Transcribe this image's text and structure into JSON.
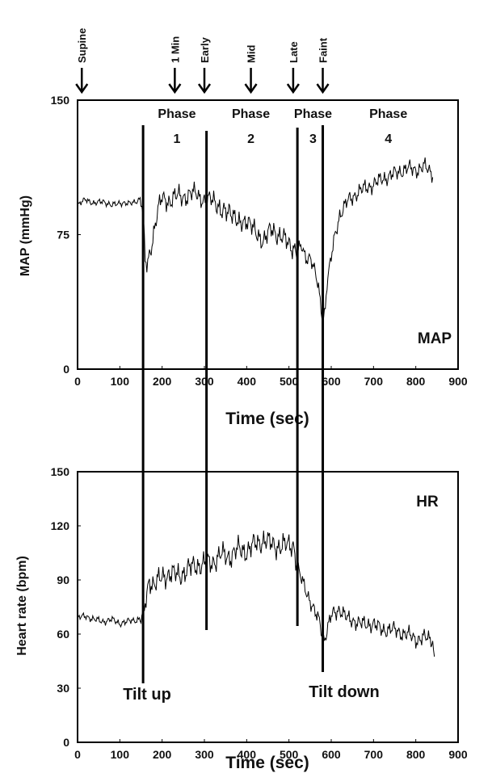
{
  "events": [
    {
      "label": "Supine",
      "t": 10
    },
    {
      "label": "1 Min",
      "t": 230
    },
    {
      "label": "Early",
      "t": 300
    },
    {
      "label": "Mid",
      "t": 410
    },
    {
      "label": "Late",
      "t": 510
    },
    {
      "label": "Faint",
      "t": 580
    }
  ],
  "phases": [
    {
      "label": "Phase",
      "num": "1",
      "t": 235
    },
    {
      "label": "Phase",
      "num": "2",
      "t": 410
    },
    {
      "label": "Phase",
      "num": "3",
      "t": 557
    },
    {
      "label": "Phase",
      "num": "4",
      "t": 735
    }
  ],
  "annotations": {
    "tilt_up": {
      "label": "Tilt up",
      "t": 155
    },
    "tilt_down": {
      "label": "Tilt down",
      "t": 580
    }
  },
  "chart_data": [
    {
      "type": "line",
      "title": "MAP",
      "xlabel": "Time (sec)",
      "ylabel": "MAP (mmHg)",
      "xlim": [
        0,
        900
      ],
      "ylim": [
        0,
        150
      ],
      "xticks": [
        0,
        100,
        200,
        300,
        400,
        500,
        600,
        700,
        800,
        900
      ],
      "yticks": [
        0,
        75,
        150
      ],
      "vertical_lines": [
        155,
        305,
        520,
        580
      ],
      "x": [
        0,
        20,
        40,
        60,
        80,
        100,
        120,
        140,
        150,
        155,
        160,
        165,
        175,
        190,
        200,
        220,
        240,
        260,
        280,
        300,
        320,
        340,
        360,
        380,
        400,
        420,
        440,
        460,
        480,
        500,
        520,
        530,
        540,
        550,
        560,
        570,
        575,
        580,
        585,
        590,
        600,
        610,
        620,
        640,
        660,
        680,
        700,
        720,
        740,
        760,
        780,
        800,
        820,
        840
      ],
      "values": [
        91,
        95,
        92,
        94,
        91,
        93,
        92,
        94,
        95,
        85,
        60,
        58,
        70,
        88,
        96,
        93,
        98,
        95,
        100,
        92,
        97,
        86,
        90,
        80,
        84,
        76,
        72,
        78,
        74,
        70,
        66,
        68,
        62,
        63,
        55,
        45,
        36,
        28,
        32,
        48,
        62,
        76,
        86,
        94,
        98,
        101,
        103,
        106,
        108,
        110,
        112,
        111,
        113,
        109
      ]
    },
    {
      "type": "line",
      "title": "HR",
      "xlabel": "Time (sec)",
      "ylabel": "Heart rate (bpm)",
      "xlim": [
        0,
        900
      ],
      "ylim": [
        0,
        150
      ],
      "xticks": [
        0,
        100,
        200,
        300,
        400,
        500,
        600,
        700,
        800,
        900
      ],
      "yticks": [
        0,
        30,
        60,
        90,
        120,
        150
      ],
      "vertical_lines": [
        155,
        305,
        520,
        580
      ],
      "x": [
        0,
        20,
        40,
        60,
        80,
        100,
        120,
        140,
        155,
        160,
        170,
        180,
        200,
        220,
        240,
        260,
        280,
        300,
        320,
        340,
        360,
        380,
        400,
        420,
        440,
        460,
        480,
        500,
        510,
        520,
        530,
        540,
        560,
        575,
        580,
        590,
        600,
        620,
        640,
        660,
        680,
        700,
        720,
        740,
        760,
        780,
        800,
        820,
        840,
        845
      ],
      "values": [
        69,
        70,
        68,
        67,
        68,
        66,
        67,
        68,
        69,
        76,
        90,
        88,
        91,
        94,
        92,
        96,
        98,
        99,
        100,
        104,
        103,
        107,
        106,
        110,
        112,
        110,
        108,
        110,
        110,
        96,
        90,
        85,
        72,
        66,
        55,
        62,
        70,
        74,
        68,
        67,
        65,
        66,
        62,
        63,
        61,
        60,
        57,
        58,
        57,
        42
      ]
    }
  ]
}
